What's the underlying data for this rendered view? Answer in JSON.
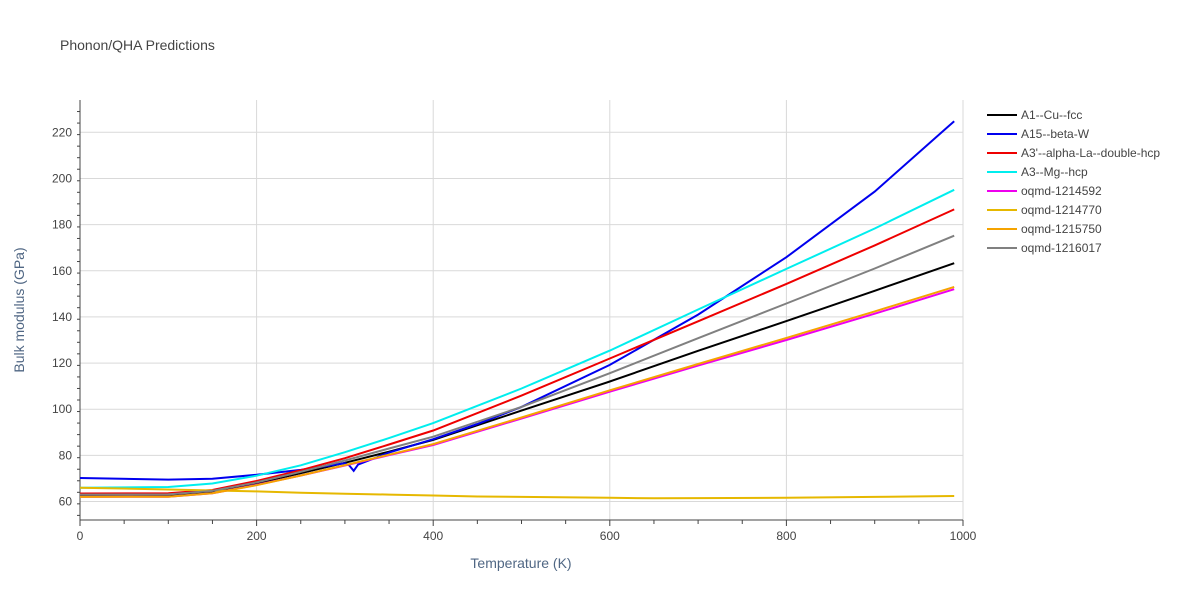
{
  "chart_data": {
    "type": "line",
    "title": "Phonon/QHA Predictions",
    "xlabel": "Temperature (K)",
    "ylabel": "Bulk modulus (GPa)",
    "xlim": [
      0,
      1000
    ],
    "ylim": [
      52,
      234
    ],
    "xticks": [
      0,
      200,
      400,
      600,
      800,
      1000
    ],
    "yticks": [
      60,
      80,
      100,
      120,
      140,
      160,
      180,
      200,
      220
    ],
    "grid": true,
    "legend_position": "right",
    "series": [
      {
        "name": "A1--Cu--fcc",
        "color": "#000000",
        "x": [
          0,
          100,
          150,
          200,
          250,
          300,
          350,
          400,
          500,
          600,
          700,
          800,
          900,
          990
        ],
        "y": [
          62.5,
          62.6,
          64.2,
          67.9,
          72.3,
          76.8,
          81.6,
          86.7,
          99.4,
          112.0,
          125.3,
          138.2,
          151.3,
          163.3
        ]
      },
      {
        "name": "A15--beta-W",
        "color": "#0000ee",
        "x": [
          0,
          100,
          150,
          200,
          250,
          300,
          305,
          310,
          315,
          350,
          400,
          450,
          500,
          600,
          700,
          800,
          900,
          990
        ],
        "y": [
          70.2,
          69.5,
          69.9,
          71.6,
          73.7,
          76.6,
          75.6,
          73.3,
          76.0,
          81.2,
          87.0,
          93.6,
          101.0,
          119.2,
          141.0,
          165.9,
          194.3,
          224.8
        ]
      },
      {
        "name": "A3'--alpha-La--double-hcp",
        "color": "#ee0000",
        "x": [
          0,
          100,
          150,
          200,
          250,
          300,
          350,
          400,
          500,
          600,
          700,
          800,
          900,
          990
        ],
        "y": [
          63.5,
          63.6,
          65.0,
          68.9,
          73.6,
          78.8,
          84.7,
          90.8,
          105.9,
          122.0,
          138.1,
          154.3,
          171.0,
          186.6
        ]
      },
      {
        "name": "A3--Mg--hcp",
        "color": "#00eeee",
        "x": [
          0,
          100,
          150,
          200,
          250,
          300,
          350,
          400,
          500,
          600,
          700,
          800,
          900,
          990
        ],
        "y": [
          66.0,
          66.3,
          67.8,
          71.2,
          75.7,
          81.4,
          87.5,
          94.0,
          109.0,
          125.4,
          143.2,
          160.8,
          178.3,
          195.1
        ]
      },
      {
        "name": "oqmd-1214592",
        "color": "#ee00ee",
        "x": [
          0,
          100,
          150,
          200,
          250,
          300,
          350,
          400,
          500,
          600,
          700,
          800,
          900,
          990
        ],
        "y": [
          62.0,
          62.1,
          63.6,
          67.2,
          71.3,
          75.6,
          80.1,
          84.5,
          96.0,
          107.6,
          118.9,
          130.0,
          141.4,
          152.0
        ]
      },
      {
        "name": "oqmd-1214770",
        "color": "#e6b800",
        "x": [
          0,
          100,
          200,
          250,
          300,
          350,
          400,
          450,
          500,
          600,
          650,
          700,
          800,
          900,
          990
        ],
        "y": [
          66.0,
          65.2,
          64.4,
          63.8,
          63.4,
          63.0,
          62.6,
          62.2,
          62.0,
          61.6,
          61.4,
          61.5,
          61.6,
          62.0,
          62.4
        ]
      },
      {
        "name": "oqmd-1215750",
        "color": "#f5a300",
        "x": [
          0,
          100,
          150,
          200,
          250,
          300,
          350,
          400,
          500,
          600,
          700,
          800,
          900,
          990
        ],
        "y": [
          62.0,
          62.1,
          63.6,
          67.1,
          71.3,
          75.8,
          80.3,
          84.9,
          96.4,
          108.2,
          119.6,
          130.9,
          142.4,
          153.0
        ]
      },
      {
        "name": "oqmd-1216017",
        "color": "#808080",
        "x": [
          0,
          100,
          150,
          200,
          250,
          300,
          350,
          400,
          500,
          600,
          700,
          800,
          900,
          990
        ],
        "y": [
          63.0,
          63.1,
          64.6,
          68.3,
          72.9,
          77.8,
          83.0,
          88.1,
          101.0,
          115.6,
          130.8,
          145.8,
          161.0,
          175.2
        ]
      }
    ]
  }
}
